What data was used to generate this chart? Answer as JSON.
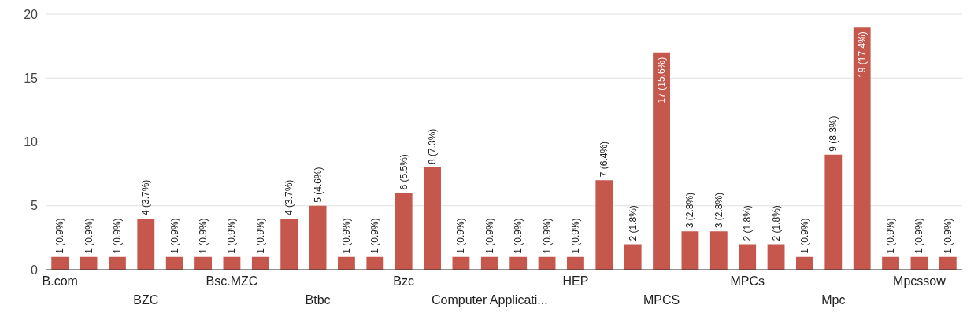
{
  "chart_data": {
    "type": "bar",
    "categories": [
      "B.com",
      null,
      null,
      "BZC",
      null,
      null,
      "Bsc.MZC",
      null,
      null,
      "Btbc",
      null,
      null,
      "Bzc",
      null,
      null,
      "Computer Applicati...",
      null,
      null,
      "HEP",
      null,
      null,
      "MPCS",
      null,
      null,
      "MPCs",
      null,
      null,
      "Mpc",
      null,
      null,
      "Mpcssow",
      null
    ],
    "values": [
      1,
      1,
      1,
      4,
      1,
      1,
      1,
      1,
      4,
      5,
      1,
      1,
      6,
      8,
      1,
      1,
      1,
      1,
      1,
      7,
      2,
      17,
      3,
      3,
      2,
      2,
      1,
      9,
      19,
      1,
      1,
      1
    ],
    "value_labels": [
      "1 (0.9%)",
      "1 (0.9%)",
      "1 (0.9%)",
      "4 (3.7%)",
      "1 (0.9%)",
      "1 (0.9%)",
      "1 (0.9%)",
      "1 (0.9%)",
      "4 (3.7%)",
      "5 (4.6%)",
      "1 (0.9%)",
      "1 (0.9%)",
      "6 (5.5%)",
      "8 (7.3%)",
      "1 (0.9%)",
      "1 (0.9%)",
      "1 (0.9%)",
      "1 (0.9%)",
      "1 (0.9%)",
      "7 (6.4%)",
      "2 (1.8%)",
      "17 (15.6%)",
      "3 (2.8%)",
      "3 (2.8%)",
      "2 (1.8%)",
      "2 (1.8%)",
      "1 (0.9%)",
      "9 (8.3%)",
      "19 (17.4%)",
      "1 (0.9%)",
      "1 (0.9%)",
      "1 (0.9%)"
    ],
    "color": "#c5574c",
    "ylim": [
      0,
      20
    ],
    "yticks": [
      0,
      5,
      10,
      15,
      20
    ],
    "grid": "y"
  }
}
